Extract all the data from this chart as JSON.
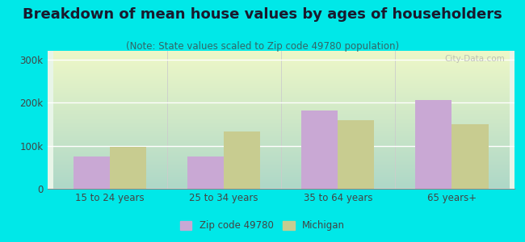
{
  "title": "Breakdown of mean house values by ages of householders",
  "subtitle": "(Note: State values scaled to Zip code 49780 population)",
  "categories": [
    "15 to 24 years",
    "25 to 34 years",
    "35 to 64 years",
    "65 years+"
  ],
  "zip_values": [
    75000,
    75000,
    182000,
    205000
  ],
  "state_values": [
    97000,
    132000,
    160000,
    150000
  ],
  "zip_color": "#c9a8d4",
  "state_color": "#c8cc90",
  "ylim": [
    0,
    320000
  ],
  "yticks": [
    0,
    100000,
    200000,
    300000
  ],
  "ytick_labels": [
    "0",
    "100k",
    "200k",
    "300k"
  ],
  "background_color": "#00e8e8",
  "legend_zip_label": "Zip code 49780",
  "legend_state_label": "Michigan",
  "title_fontsize": 13,
  "subtitle_fontsize": 8.5,
  "bar_width": 0.32
}
